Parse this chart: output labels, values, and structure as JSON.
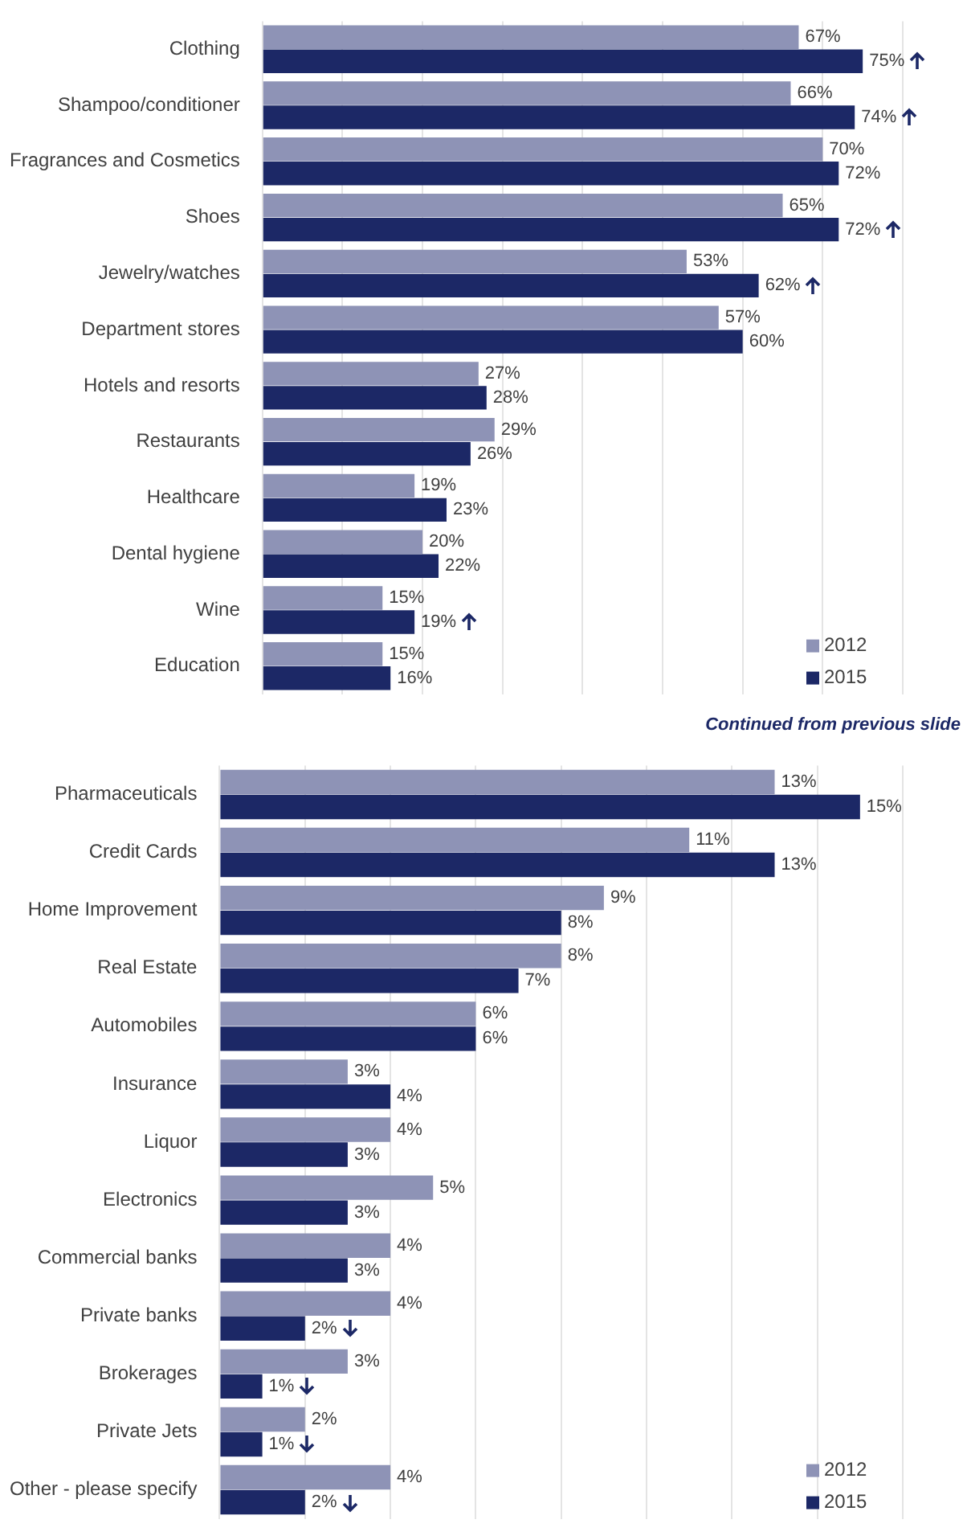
{
  "chart_data": [
    {
      "type": "bar",
      "orientation": "horizontal",
      "categories": [
        "Clothing",
        "Shampoo/conditioner",
        "Fragrances and Cosmetics",
        "Shoes",
        "Jewelry/watches",
        "Department stores",
        "Hotels and resorts",
        "Restaurants",
        "Healthcare",
        "Dental hygiene",
        "Wine",
        "Education"
      ],
      "series": [
        {
          "name": "2012",
          "color": "#8e93b6",
          "values": [
            67,
            66,
            70,
            65,
            53,
            57,
            27,
            29,
            19,
            20,
            15,
            15
          ],
          "value_labels": [
            "67%",
            "66%",
            "70%",
            "65%",
            "53%",
            "57%",
            "27%",
            "29%",
            "19%",
            "20%",
            "15%",
            "15%"
          ]
        },
        {
          "name": "2015",
          "color": "#1c2866",
          "values": [
            75,
            74,
            72,
            72,
            62,
            60,
            28,
            26,
            23,
            22,
            19,
            16
          ],
          "value_labels": [
            "75%",
            "74%",
            "72%",
            "72%",
            "62%",
            "60%",
            "28%",
            "26%",
            "23%",
            "22%",
            "19%",
            "16%"
          ]
        }
      ],
      "xlim": [
        0,
        80
      ],
      "xticks": [
        {
          "value": 0,
          "label": null
        },
        {
          "value": 10,
          "label": null
        },
        {
          "value": 20,
          "label": null
        },
        {
          "value": 30,
          "label": null
        },
        {
          "value": 40,
          "label": null
        },
        {
          "value": 50,
          "label": null
        },
        {
          "value": 60,
          "label": null
        },
        {
          "value": 70,
          "label": null
        },
        {
          "value": 80,
          "label": null
        }
      ],
      "tick_labels": "y",
      "grid": "x",
      "legend": "bottom right"
    },
    {
      "type": "bar",
      "orientation": "horizontal",
      "annotations": [
        "Continued from previous slide"
      ],
      "categories": [
        "Pharmaceuticals",
        "Credit Cards",
        "Home Improvement",
        "Real Estate",
        "Automobiles",
        "Insurance",
        "Liquor",
        "Electronics",
        "Commercial banks",
        "Private banks",
        "Brokerages",
        "Private Jets",
        "Other - please specify"
      ],
      "series": [
        {
          "name": "2012",
          "color": "#8e93b6",
          "values": [
            13,
            11,
            9,
            8,
            6,
            3,
            4,
            5,
            4,
            4,
            3,
            2,
            4
          ],
          "value_labels": [
            "13%",
            "11%",
            "9%",
            "8%",
            "6%",
            "3%",
            "4%",
            "5%",
            "4%",
            "4%",
            "3%",
            "2%",
            "4%"
          ]
        },
        {
          "name": "2015",
          "color": "#1c2866",
          "values": [
            15,
            13,
            8,
            7,
            6,
            4,
            3,
            3,
            3,
            2,
            1,
            1,
            2
          ],
          "value_labels": [
            "15%",
            "13%",
            "8%",
            "7%",
            "6%",
            "4%",
            "3%",
            "3%",
            "3%",
            "2%",
            "1%",
            "1%",
            "2%"
          ]
        }
      ],
      "xlim": [
        0,
        16
      ],
      "xticks": [
        {
          "value": 0,
          "label": null
        },
        {
          "value": 2,
          "label": null
        },
        {
          "value": 4,
          "label": null
        },
        {
          "value": 6,
          "label": null
        },
        {
          "value": 8,
          "label": null
        },
        {
          "value": 10,
          "label": null
        },
        {
          "value": 12,
          "label": null
        },
        {
          "value": 14,
          "label": null
        },
        {
          "value": 16,
          "label": null
        }
      ],
      "tick_labels": "y",
      "grid": "x",
      "legend": "bottom right"
    }
  ]
}
